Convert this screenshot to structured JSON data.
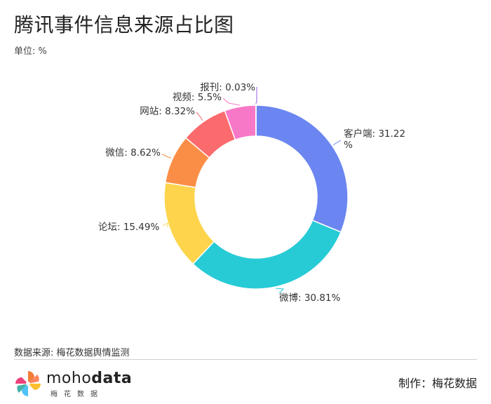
{
  "header": {
    "title": "腾讯事件信息来源占比图",
    "unit": "单位: %"
  },
  "footer": {
    "source": "数据来源: 梅花数据舆情监测",
    "brand_prefix": "moho",
    "brand_suffix": "data",
    "brand_sub": "梅花数据",
    "maker": "制作：梅花数据"
  },
  "chart_data": {
    "type": "pie",
    "subtype": "donut",
    "unit": "%",
    "categories": [
      "客户端",
      "微博",
      "论坛",
      "微信",
      "网站",
      "视频",
      "报刊"
    ],
    "values": [
      31.22,
      30.81,
      15.49,
      8.62,
      8.32,
      5.5,
      0.03
    ],
    "labels": [
      "客户端: 31.22%",
      "微博: 30.81%",
      "论坛: 15.49%",
      "微信: 8.62%",
      "网站: 8.32%",
      "视频: 5.5%",
      "报刊: 0.03%"
    ],
    "colors": [
      "#6b86f0",
      "#27cbd6",
      "#fdd44b",
      "#fb8e46",
      "#fb6b6e",
      "#f878c8",
      "#9b5de5"
    ],
    "start_angle": "top, clockwise",
    "legend": "none"
  }
}
